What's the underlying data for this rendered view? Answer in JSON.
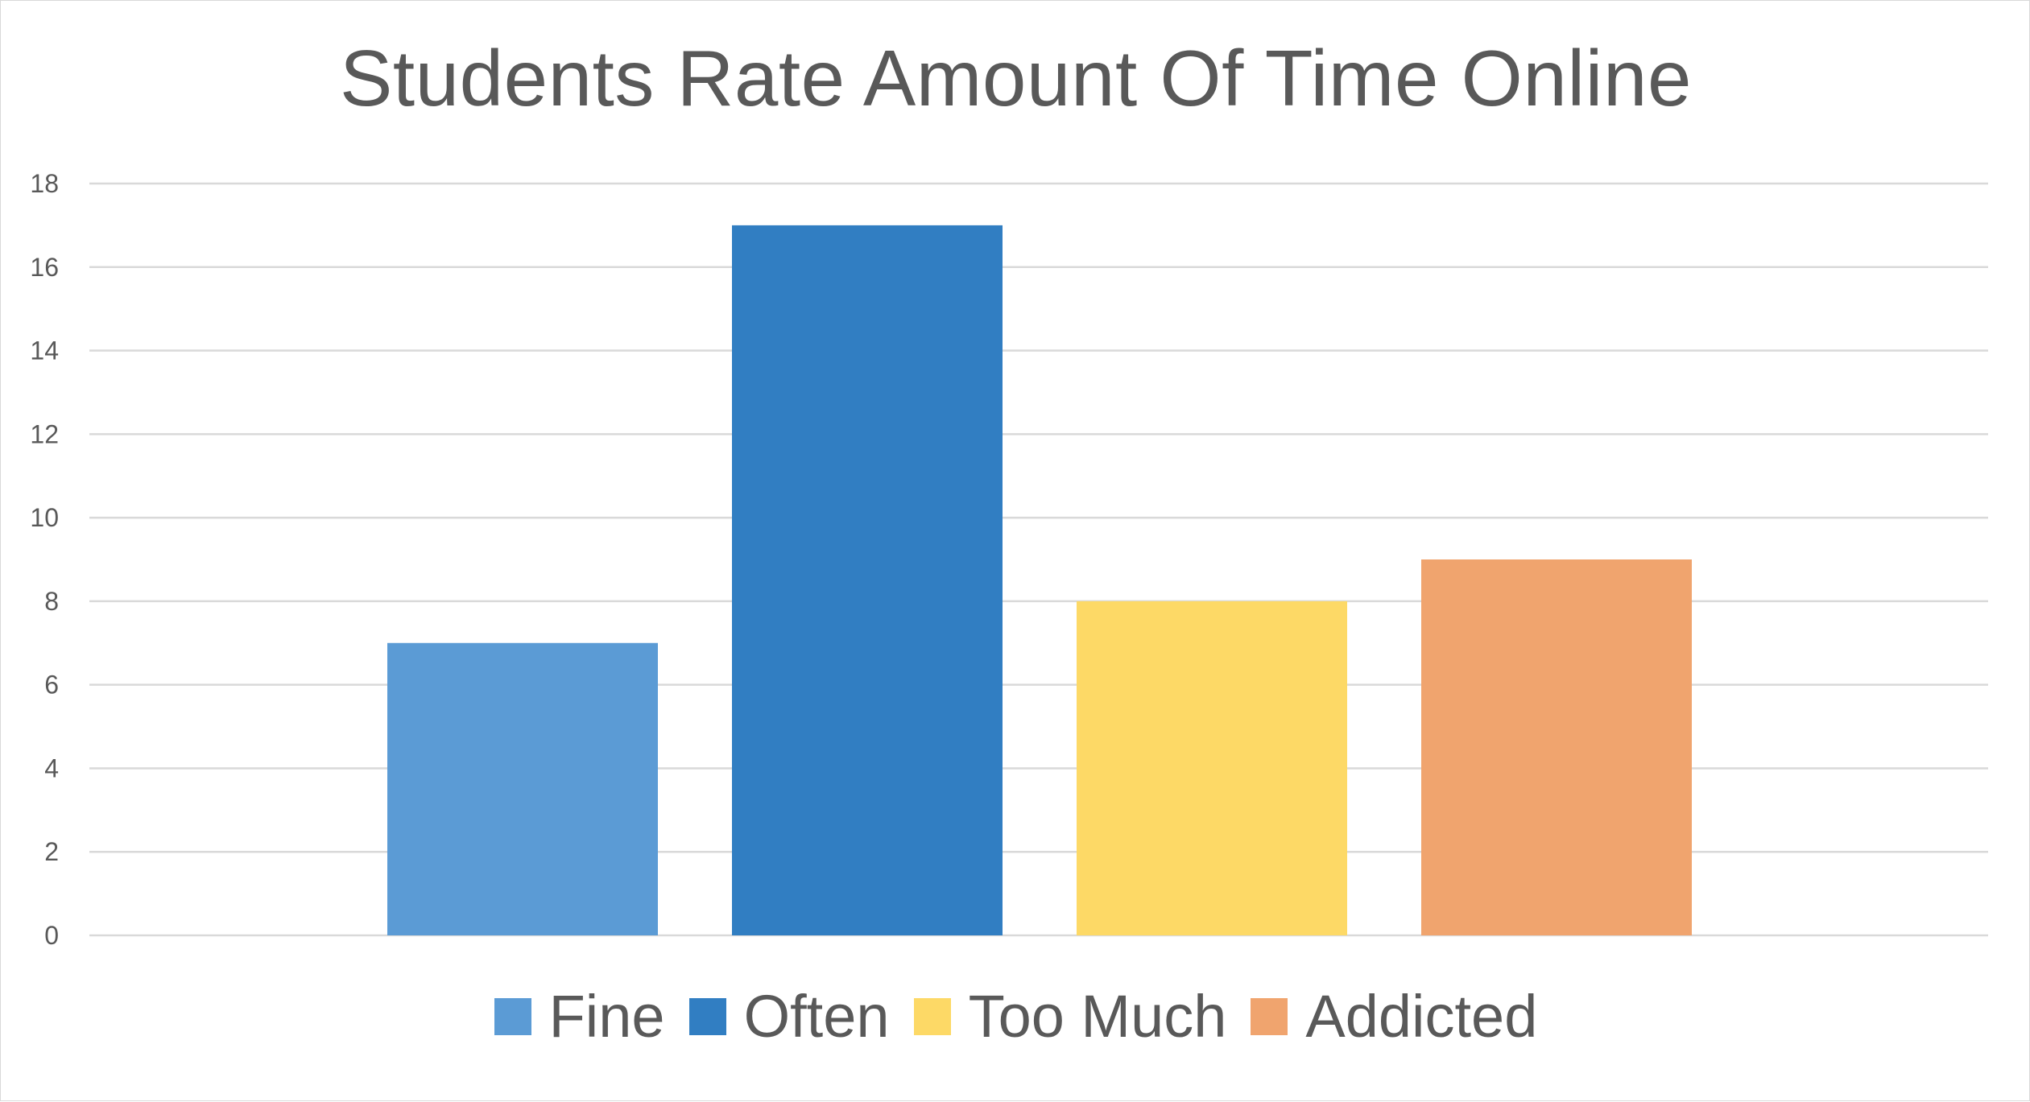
{
  "chart_data": {
    "type": "bar",
    "title": "Students Rate Amount Of Time Online",
    "categories": [
      "Fine",
      "Often",
      "Too Much",
      "Addicted"
    ],
    "values": [
      7,
      17,
      8,
      9
    ],
    "colors": [
      "#5b9bd5",
      "#317ec2",
      "#fdd966",
      "#f0a46e"
    ],
    "ylim": [
      0,
      18
    ],
    "yticks": [
      0,
      2,
      4,
      6,
      8,
      10,
      12,
      14,
      16,
      18
    ],
    "xlabel": "",
    "ylabel": "",
    "grid": true,
    "legend_position": "bottom"
  }
}
